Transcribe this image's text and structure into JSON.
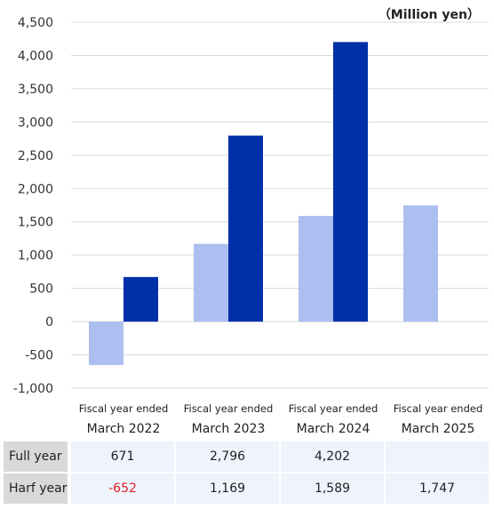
{
  "chart_data": {
    "type": "bar",
    "unit_label": "（Million yen）",
    "categories_line1": [
      "Fiscal year ended",
      "Fiscal year ended",
      "Fiscal year ended",
      "Fiscal year ended"
    ],
    "categories_line2": [
      "March 2022",
      "March 2023",
      "March 2024",
      "March 2025"
    ],
    "series": [
      {
        "name": "Harf year",
        "color": "#adbff0",
        "values": [
          -652,
          1169,
          1589,
          1747
        ]
      },
      {
        "name": "Full year",
        "color": "#0030a8",
        "values": [
          671,
          2796,
          4202,
          null
        ]
      }
    ],
    "ylim": [
      -1000,
      4500
    ],
    "yticks": [
      "4,500",
      "4,000",
      "3,500",
      "3,000",
      "2,500",
      "2,000",
      "1,500",
      "1,000",
      "500",
      "0",
      "-500",
      "-1,000"
    ],
    "ytick_values": [
      4500,
      4000,
      3500,
      3000,
      2500,
      2000,
      1500,
      1000,
      500,
      0,
      -500,
      -1000
    ],
    "grid": true
  },
  "table": {
    "rows": [
      {
        "label": "Full year",
        "cells": [
          "671",
          "2,796",
          "4,202",
          ""
        ]
      },
      {
        "label": "Harf year",
        "cells": [
          "-652",
          "1,169",
          "1,589",
          "1,747"
        ]
      }
    ],
    "negative_color": "#e02020"
  }
}
